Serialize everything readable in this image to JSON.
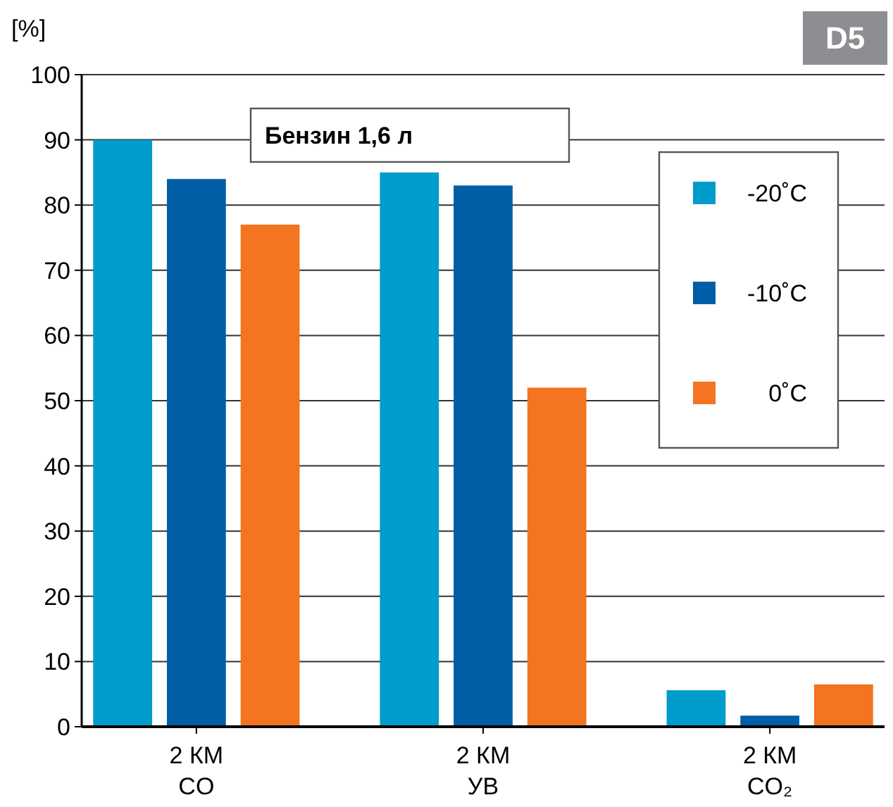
{
  "chart_data": {
    "type": "bar",
    "title": "Бензин 1,6 л",
    "ylabel": "[%]",
    "annotations": [
      "D5"
    ],
    "categories": [
      "2 КМ\nCO",
      "2 КМ\nУВ",
      "2 КМ\nCO₂"
    ],
    "series": [
      {
        "name": "-20˚C",
        "color": "#009ccc",
        "values": [
          90,
          85,
          5.6
        ]
      },
      {
        "name": "-10˚C",
        "color": "#005ea6",
        "values": [
          84,
          83,
          1.7
        ]
      },
      {
        "name": "0˚C",
        "color": "#f37421",
        "values": [
          77,
          52,
          6.5
        ]
      }
    ],
    "ylim": [
      0,
      100
    ],
    "yticks": [
      0,
      10,
      20,
      30,
      40,
      50,
      60,
      70,
      80,
      90,
      100
    ],
    "grid": "y",
    "legend": "top right"
  }
}
